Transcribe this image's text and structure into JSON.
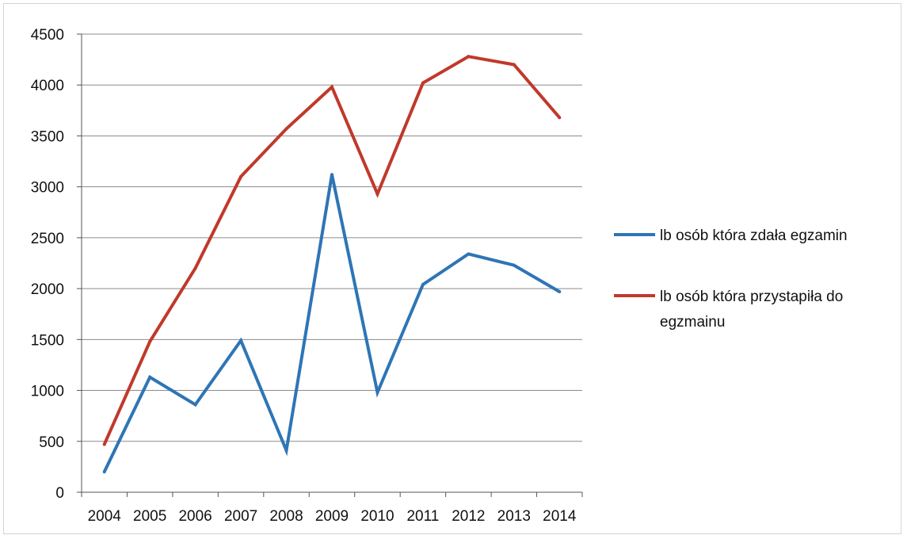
{
  "chart_data": {
    "type": "line",
    "title": "",
    "xlabel": "",
    "ylabel": "",
    "categories": [
      "2004",
      "2005",
      "2006",
      "2007",
      "2008",
      "2009",
      "2010",
      "2011",
      "2012",
      "2013",
      "2014"
    ],
    "ylim": [
      0,
      4500
    ],
    "yticks": [
      0,
      500,
      1000,
      1500,
      2000,
      2500,
      3000,
      3500,
      4000,
      4500
    ],
    "grid": true,
    "legend_position": "right",
    "series": [
      {
        "name": "lb osób która zdała egzamin",
        "color": "#2e75b6",
        "values": [
          200,
          1130,
          860,
          1490,
          410,
          3120,
          980,
          2040,
          2340,
          2230,
          1970
        ]
      },
      {
        "name": "lb osób która przystapiła do egzmainu",
        "color": "#c0392b",
        "values": [
          470,
          1480,
          2200,
          3100,
          3570,
          3980,
          2930,
          4020,
          4280,
          4200,
          3680
        ]
      }
    ]
  }
}
